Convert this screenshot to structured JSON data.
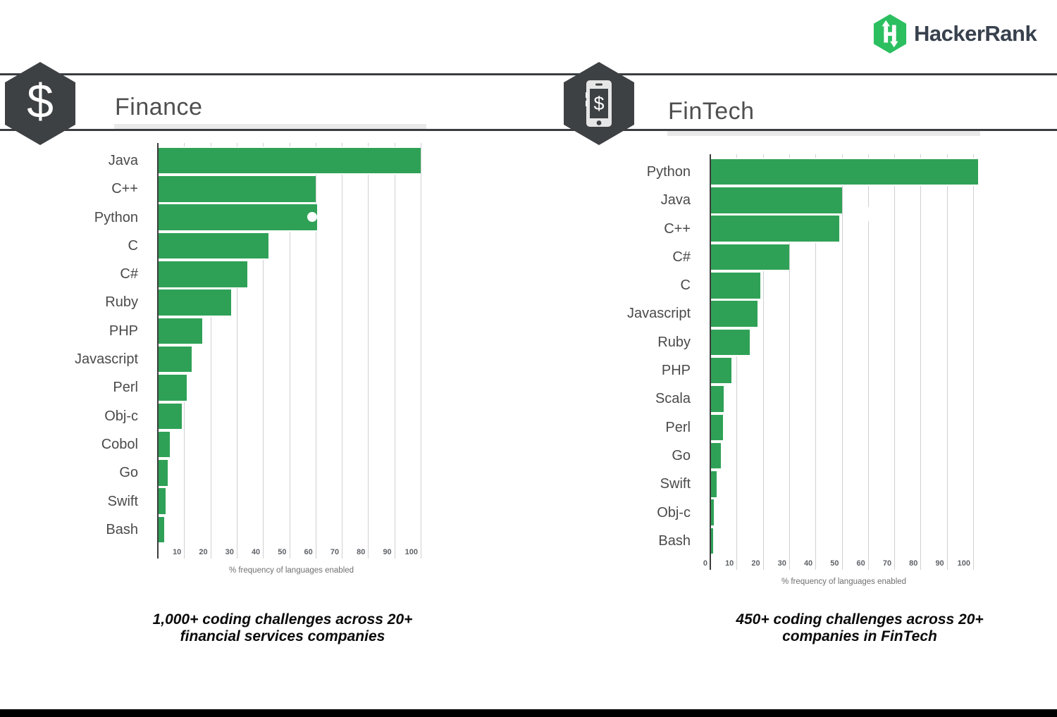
{
  "brand": {
    "logo_text": "HackerRank",
    "logo_icon": "hackerrank-hexagon-h-icon"
  },
  "colors": {
    "bar_green": "#2fa156",
    "logo_green": "#2bbf60",
    "badge_dark": "#3e4144"
  },
  "panels": [
    {
      "title": "Finance",
      "icon": "dollar-sign-hexagon-icon",
      "badge_glyph": "$",
      "caption_line1": "1,000+ coding challenges across 20+",
      "caption_line2": "financial services companies"
    },
    {
      "title": "FinTech",
      "icon": "mobile-payment-hexagon-icon",
      "badge_glyph": "$",
      "caption_line1": "450+ coding  challenges across 20+",
      "caption_line2": "companies in FinTech"
    }
  ],
  "chart_data": [
    {
      "type": "bar",
      "orientation": "horizontal",
      "title": "Finance",
      "categories": [
        "Java",
        "C++",
        "Python",
        "C",
        "C#",
        "Ruby",
        "PHP",
        "Javascript",
        "Perl",
        "Obj-c",
        "Cobol",
        "Go",
        "Swift",
        "Bash"
      ],
      "values": [
        100,
        60,
        60.5,
        42,
        34,
        28,
        17,
        13,
        11,
        9,
        4.5,
        3.7,
        3,
        2.5
      ],
      "xlabel": "% frequency of languages enabled",
      "xlim": [
        0,
        102
      ],
      "xticks": [
        10,
        20,
        30,
        40,
        50,
        60,
        70,
        80,
        90,
        100
      ],
      "grid": true,
      "legend": false
    },
    {
      "type": "bar",
      "orientation": "horizontal",
      "title": "FinTech",
      "categories": [
        "Python",
        "Java",
        "C++",
        "C#",
        "C",
        "Javascript",
        "Ruby",
        "PHP",
        "Scala",
        "Perl",
        "Go",
        "Swift",
        "Obj-c",
        "Bash"
      ],
      "values": [
        102,
        50,
        49,
        30,
        19,
        18,
        15,
        8,
        5.2,
        4.8,
        4,
        2.5,
        1.4,
        1
      ],
      "xlabel": "% frequency of languages enabled",
      "xlim": [
        0,
        102
      ],
      "xticks": [
        0,
        10,
        20,
        30,
        40,
        50,
        60,
        70,
        80,
        90,
        100
      ],
      "grid": true,
      "legend": false
    }
  ]
}
